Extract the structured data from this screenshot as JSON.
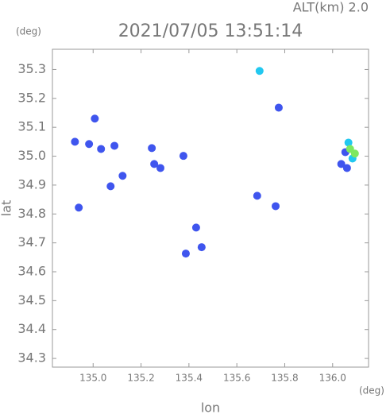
{
  "chart_data": {
    "type": "scatter",
    "title": "2021/07/05 13:51:14",
    "annotation": "ALT(km)  2.0",
    "y_unit": "(deg)",
    "x_unit": "(deg)",
    "x_label": "lon",
    "y_label": "lat",
    "xlim": [
      134.83,
      136.15
    ],
    "ylim": [
      34.27,
      35.37
    ],
    "xticks": [
      {
        "value": 135,
        "label": "135.0"
      },
      135.2,
      135.4,
      135.6,
      135.8,
      {
        "value": 136,
        "label": "136.0"
      }
    ],
    "yticks": [
      34.3,
      34.4,
      34.5,
      34.6,
      34.7,
      34.8,
      34.9,
      {
        "value": 35,
        "label": "35.0"
      },
      35.1,
      35.2,
      35.3
    ],
    "series": [
      {
        "color": "#3f55ee",
        "x": [
          135.007,
          134.924,
          134.983,
          135.033,
          135.089,
          135.245,
          135.255,
          135.281,
          135.123,
          135.073,
          134.94,
          135.43,
          135.453,
          135.387,
          135.377,
          135.762,
          135.775,
          135.685,
          136.036,
          136.06,
          136.053
        ],
        "y": [
          35.13,
          35.05,
          35.042,
          35.025,
          35.036,
          35.028,
          34.973,
          34.959,
          34.932,
          34.896,
          34.822,
          34.753,
          34.685,
          34.663,
          35.001,
          34.827,
          35.168,
          34.863,
          34.973,
          34.959,
          35.014
        ]
      },
      {
        "color": "#22c8f0",
        "x": [
          135.695,
          136.066,
          136.083
        ],
        "y": [
          35.295,
          35.047,
          34.992
        ]
      },
      {
        "color": "#7ee860",
        "x": [
          136.093,
          136.073
        ],
        "y": [
          35.009,
          35.025
        ]
      }
    ]
  }
}
